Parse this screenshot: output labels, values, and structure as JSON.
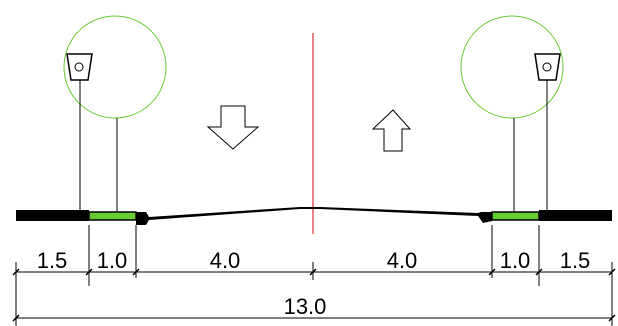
{
  "dimensions": {
    "sidewalk_left": "1.5",
    "green_strip_left": "1.0",
    "lane_left": "4.0",
    "lane_right": "4.0",
    "green_strip_right": "1.0",
    "sidewalk_right": "1.5",
    "total_width": "13.0"
  },
  "elements": {
    "tree_icon": "circle-crown-icon",
    "lamp_icon": "street-lamp-icon",
    "arrow_down_icon": "arrow-down-icon",
    "arrow_up_icon": "arrow-up-icon"
  },
  "colors": {
    "green_strip": "#66cc33",
    "tree_outline": "#66cc33",
    "centerline": "#e03030",
    "road": "#000000"
  }
}
